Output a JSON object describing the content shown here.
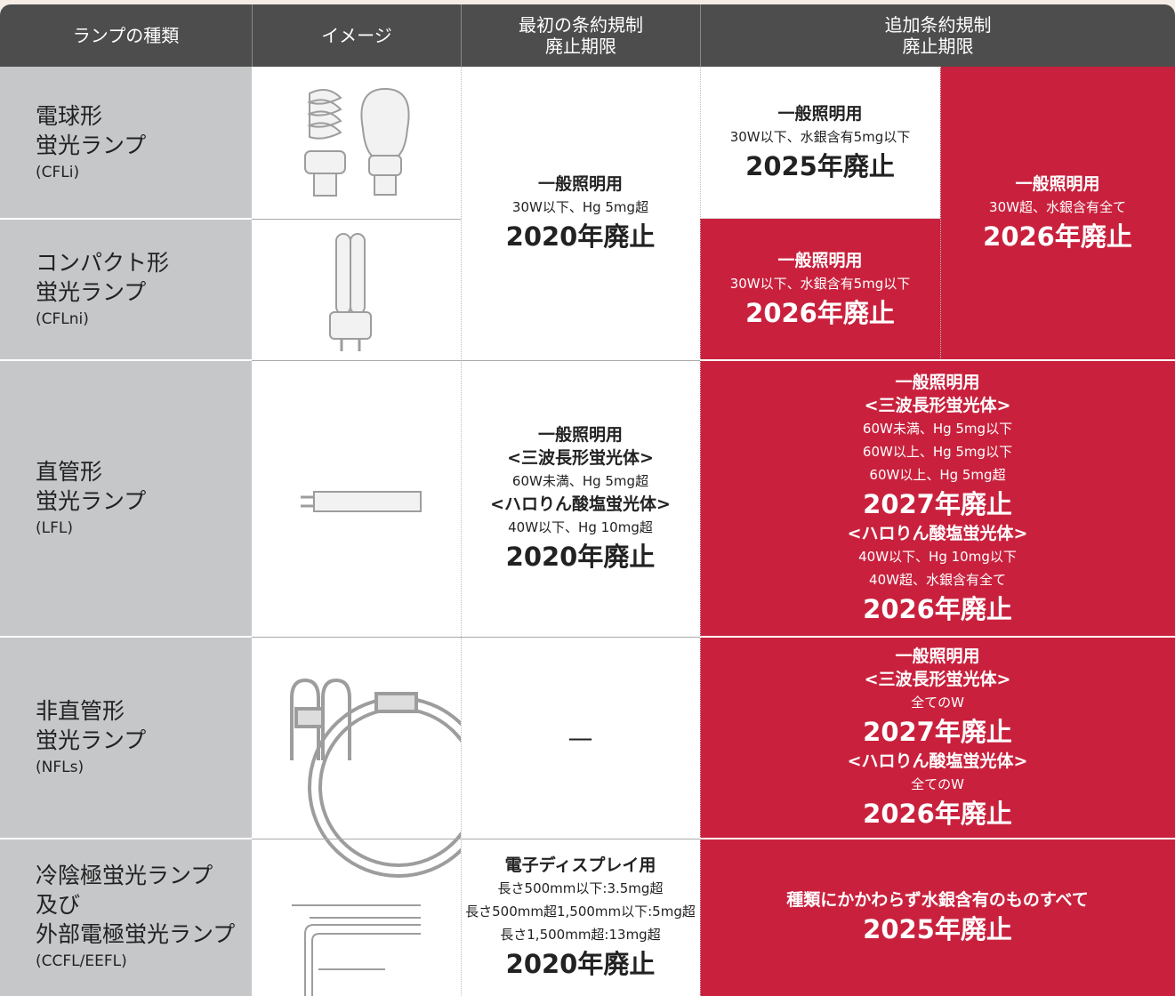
{
  "header": {
    "type": "ランプの種類",
    "image": "イメージ",
    "first": [
      "最初の条約規制",
      "廃止期限"
    ],
    "additional": [
      "追加条約規制",
      "廃止期限"
    ]
  },
  "rows": [
    {
      "name": [
        "電球形",
        "蛍光ランプ"
      ],
      "code": "(CFLi)"
    },
    {
      "name": [
        "コンパクト形",
        "蛍光ランプ"
      ],
      "code": "(CFLni)"
    },
    {
      "name": [
        "直管形",
        "蛍光ランプ"
      ],
      "code": "(LFL)"
    },
    {
      "name": [
        "非直管形",
        "蛍光ランプ"
      ],
      "code": "(NFLs)"
    },
    {
      "name": [
        "冷陰極蛍光ランプ",
        "及び",
        "外部電極蛍光ランプ"
      ],
      "code": "(CCFL/EEFL)"
    }
  ],
  "first": [
    [
      "一般照明用",
      "30W以下、Hg 5mg超",
      "2020年廃止"
    ],
    [
      "一般照明用",
      "<三波長形蛍光体>",
      "60W未満、Hg 5mg超",
      "<ハロりん酸塩蛍光体>",
      "40W以下、Hg 10mg超",
      "2020年廃止"
    ],
    [
      "—"
    ],
    [
      "電子ディスプレイ用",
      "長さ500mm以下:3.5mg超",
      "長さ500mm超1,500mm以下:5mg超",
      "長さ1,500mm超:13mg超",
      "2020年廃止"
    ]
  ],
  "additional": [
    [
      "一般照明用",
      "30W以下、水銀含有5mg以下",
      "2025年廃止"
    ],
    [
      "一般照明用",
      "30W以下、水銀含有5mg以下",
      "2026年廃止"
    ],
    [
      "一般照明用",
      "30W超、水銀含有全て",
      "2026年廃止"
    ],
    [
      "一般照明用",
      "<三波長形蛍光体>",
      "60W未満、Hg 5mg以下",
      "60W以上、Hg 5mg以下",
      "60W以上、Hg 5mg超",
      "2027年廃止",
      "<ハロりん酸塩蛍光体>",
      "40W以下、Hg 10mg以下",
      "40W超、水銀含有全て",
      "2026年廃止"
    ],
    [
      "一般照明用",
      "<三波長形蛍光体>",
      "全てのW",
      "2027年廃止",
      "<ハロりん酸塩蛍光体>",
      "全てのW",
      "2026年廃止"
    ],
    [
      "種類にかかわらず水銀含有のものすべて",
      "2025年廃止"
    ]
  ]
}
